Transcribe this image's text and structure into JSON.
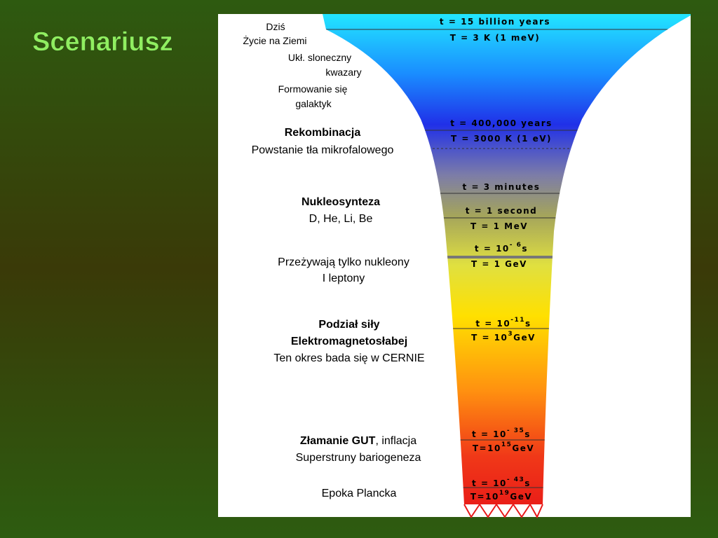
{
  "title": "Scenariusz",
  "left_labels": [
    [
      {
        "text": "Dziś"
      }
    ],
    [
      {
        "text": "Życie na Ziemi"
      }
    ],
    [
      {
        "text": "Ukł. sloneczny"
      }
    ],
    [
      {
        "text": "kwazary"
      }
    ],
    [
      {
        "text": "Formowanie się"
      }
    ],
    [
      {
        "text": "galaktyk"
      }
    ],
    [
      {
        "text": "Rekombinacja",
        "bold": true
      }
    ],
    [
      {
        "text": "Powstanie tła mikrofalowego"
      }
    ],
    [
      {
        "text": "Nukleosynteza",
        "bold": true
      }
    ],
    [
      {
        "text": "D, He, Li, Be"
      }
    ],
    [
      {
        "text": "Przeżywają tylko nukleony"
      }
    ],
    [
      {
        "text": "I leptony"
      }
    ],
    [
      {
        "text": "Podział siły",
        "bold": true
      }
    ],
    [
      {
        "text": "Elektromagnetosłabej",
        "bold": true
      }
    ],
    [
      {
        "text": "Ten okres bada się w CERNIE"
      }
    ],
    [
      {
        "text": "Złamanie GUT",
        "bold": true
      },
      {
        "text": ", inflacja"
      }
    ],
    [
      {
        "text": "Superstruny bariogeneza"
      }
    ],
    [
      {
        "text": "Epoka Plancka"
      }
    ]
  ],
  "funnel_labels": [
    {
      "text": "t = 15 billion years"
    },
    {
      "text": "T = 3 K   (1 meV)"
    },
    {
      "text": "t = 400,000 years"
    },
    {
      "text": "T = 3000 K   (1 eV)"
    },
    {
      "text": "t = 3 minutes"
    },
    {
      "text": "t = 1 second"
    },
    {
      "text": "T = 1 MeV"
    },
    {
      "text": "t = 10",
      "sup": "- 6",
      "tail": "s"
    },
    {
      "text": "T = 1 GeV"
    },
    {
      "text": "t = 10",
      "sup": "-11",
      "tail": "s"
    },
    {
      "text": "T = 10",
      "sup": "3",
      "tail": "GeV"
    },
    {
      "text": "t = 10",
      "sup": "- 35",
      "tail": "s"
    },
    {
      "text": "T=10",
      "sup": "15",
      "tail": "GeV"
    },
    {
      "text": "t = 10",
      "sup": "- 43",
      "tail": "s"
    },
    {
      "text": "T=10",
      "sup": "19",
      "tail": "GeV"
    }
  ]
}
